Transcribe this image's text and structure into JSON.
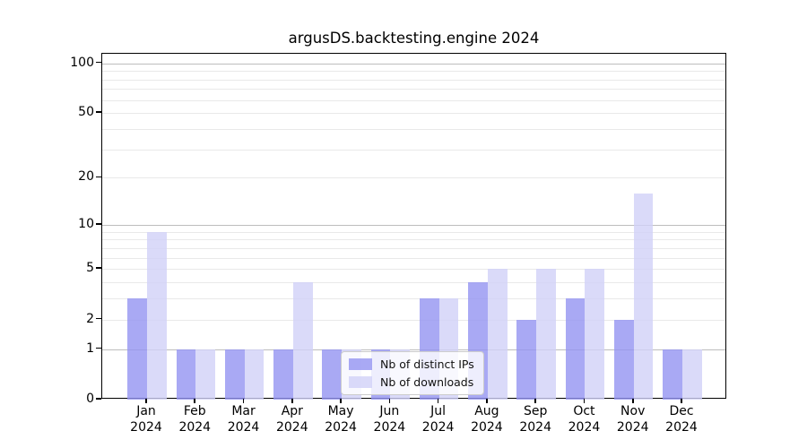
{
  "chart_data": {
    "type": "bar",
    "title": "argusDS.backtesting.engine 2024",
    "categories": [
      "Jan",
      "Feb",
      "Mar",
      "Apr",
      "May",
      "Jun",
      "Jul",
      "Aug",
      "Sep",
      "Oct",
      "Nov",
      "Dec"
    ],
    "x_tick_second_line": "2024",
    "series": [
      {
        "name": "Nb of distinct IPs",
        "color": "#9494f1",
        "values": [
          3,
          1,
          1,
          1,
          1,
          1,
          3,
          4,
          2,
          3,
          2,
          1
        ]
      },
      {
        "name": "Nb of downloads",
        "color": "#d1d1f8",
        "values": [
          9,
          1,
          1,
          4,
          1,
          1,
          3,
          5,
          5,
          5,
          16,
          1
        ]
      }
    ],
    "bar_opacity": 0.8,
    "yscale": "log1p",
    "ylim": [
      0,
      114
    ],
    "yticks": [
      0,
      1,
      2,
      5,
      10,
      20,
      50,
      100
    ],
    "major_gridlines": [
      1,
      10,
      100
    ],
    "minor_gridlines": [
      2,
      3,
      4,
      5,
      6,
      7,
      8,
      9,
      20,
      30,
      40,
      50,
      60,
      70,
      80,
      90
    ],
    "grid": true,
    "legend_position": "lower center",
    "axis_color": "#000000",
    "major_grid_color": "#bdbdbd",
    "minor_grid_color": "#e9e9e9"
  }
}
